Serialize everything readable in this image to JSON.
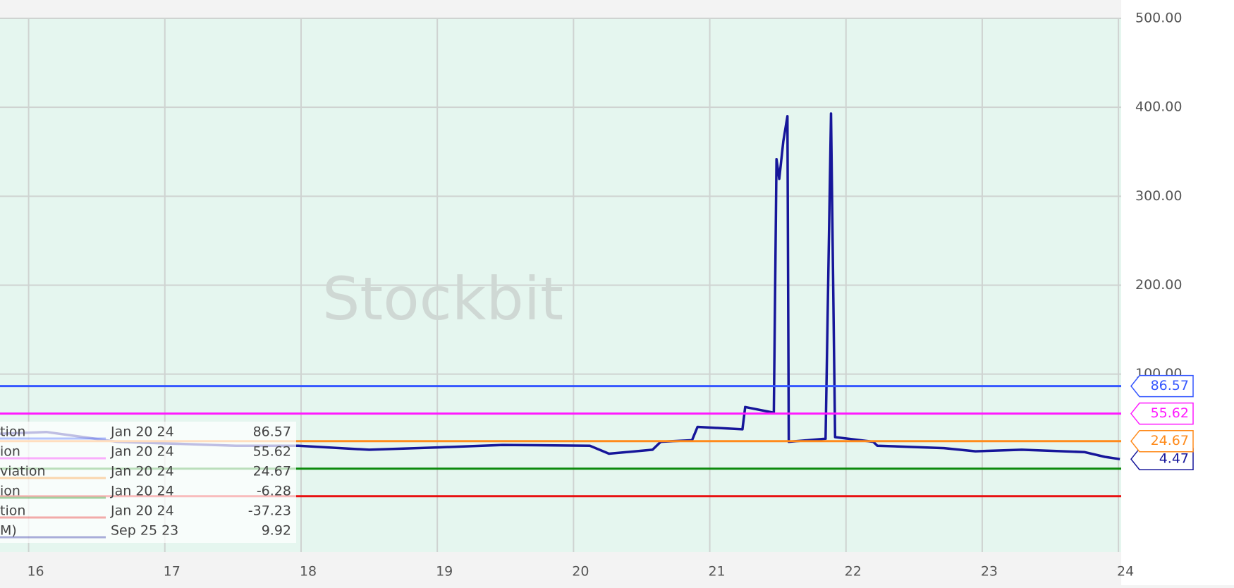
{
  "chart_data": {
    "type": "line",
    "watermark": "Stockbit",
    "xlim": [
      15.79,
      24.02
    ],
    "ylim": [
      -100,
      500
    ],
    "xticks": [
      16,
      17,
      18,
      19,
      20,
      21,
      22,
      23,
      24
    ],
    "yticks": [
      {
        "value": 500,
        "label": "500.00"
      },
      {
        "value": 400,
        "label": "400.00"
      },
      {
        "value": 300,
        "label": "300.00"
      },
      {
        "value": 200,
        "label": "200.00"
      },
      {
        "value": 100,
        "label": "100.00"
      }
    ],
    "grid": true,
    "series": [
      {
        "name": "M)",
        "color": "#16169a",
        "date": "Sep 25 23",
        "latest": 9.92,
        "flag_value": 4.47,
        "x": [
          15.79,
          16.13,
          16.65,
          17.52,
          17.98,
          18.5,
          19.02,
          19.48,
          20.12,
          20.26,
          20.58,
          20.64,
          20.87,
          20.91,
          21.24,
          21.26,
          21.47,
          21.49,
          21.51,
          21.54,
          21.57,
          21.58,
          21.85,
          21.89,
          21.92,
          22.2,
          22.23,
          22.72,
          22.95,
          23.29,
          23.75,
          23.9,
          24.01
        ],
        "values": [
          33,
          35,
          24,
          19.5,
          19.5,
          15,
          17.7,
          20.4,
          19.5,
          10.6,
          15,
          24,
          25.7,
          40.7,
          38,
          63,
          56.6,
          341.6,
          319.5,
          362,
          390,
          24,
          27.4,
          393,
          29.2,
          24,
          19.5,
          16.8,
          13.3,
          15,
          12.4,
          7,
          4.47
        ]
      },
      {
        "name": "tion",
        "color": "#3557ff",
        "date": "Jan 20 24",
        "value": 86.57,
        "flag": true
      },
      {
        "name": "ion",
        "color": "#ff1aff",
        "date": "Jan 20 24",
        "value": 55.62,
        "flag": true
      },
      {
        "name": "viation",
        "color": "#ff8a1a",
        "date": "Jan 20 24",
        "value": 24.67,
        "flag": true
      },
      {
        "name": "ion",
        "color": "#0d8a0d",
        "date": "Jan 20 24",
        "value": -6.28,
        "flag": false
      },
      {
        "name": "tion",
        "color": "#e81010",
        "date": "Jan 20 24",
        "value": -37.23,
        "flag": false
      }
    ]
  }
}
